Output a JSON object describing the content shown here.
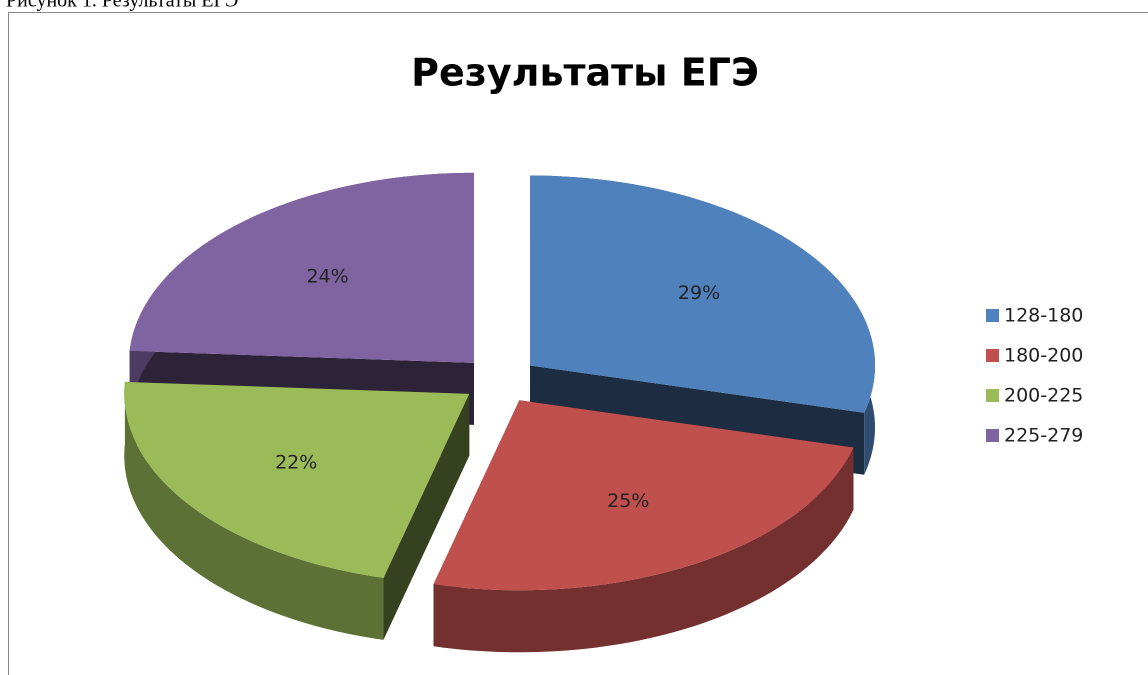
{
  "caption": "Рисунок 1. Результаты ЕГЭ",
  "chart_data": {
    "type": "pie",
    "title": "Результаты ЕГЭ",
    "categories": [
      "128-180",
      "180-200",
      "200-225",
      "225-279"
    ],
    "values": [
      29,
      25,
      22,
      24
    ],
    "value_labels": [
      "29%",
      "25%",
      "22%",
      "24%"
    ],
    "colors": [
      "#4f81bd",
      "#c0504d",
      "#9bbb59",
      "#8064a2"
    ],
    "legend": "right"
  }
}
